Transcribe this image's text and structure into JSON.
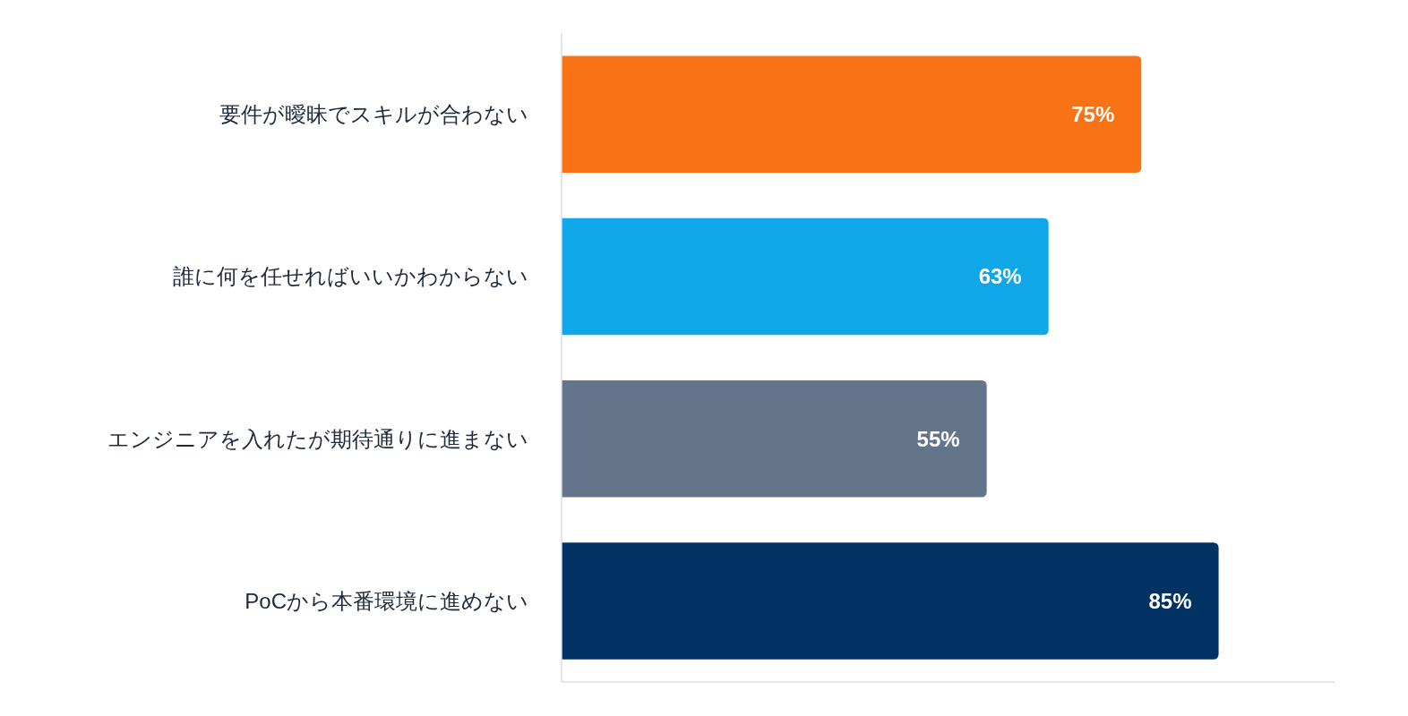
{
  "chart_data": {
    "type": "bar",
    "orientation": "horizontal",
    "tick_labels": "y",
    "xlim": [
      0,
      100
    ],
    "categories": [
      "要件が曖昧でスキルが合わない",
      "誰に何を任せればいいかわからない",
      "エンジニアを入れたが期待通りに進まない",
      "PoCから本番環境に進めない"
    ],
    "values": [
      75,
      63,
      55,
      85
    ],
    "colors": [
      "#f97316",
      "#10a7e8",
      "#64748b",
      "#003263"
    ],
    "value_labels": [
      "75%",
      "63%",
      "55%",
      "85%"
    ]
  }
}
